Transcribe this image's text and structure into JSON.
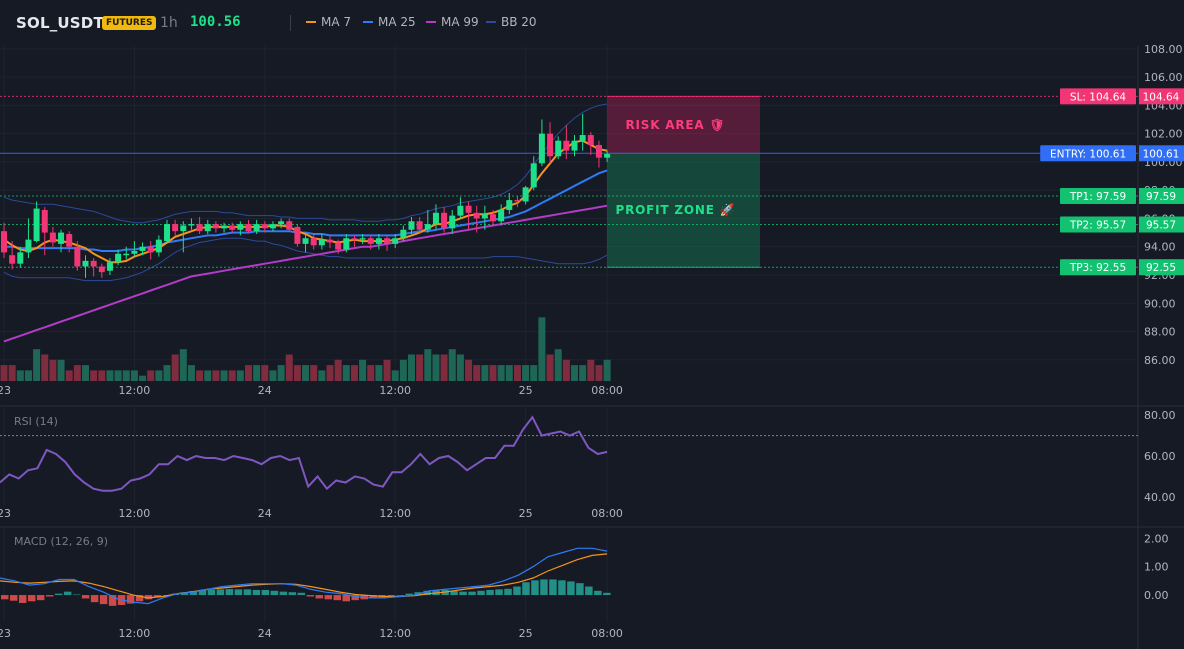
{
  "header": {
    "symbol": "SOL_USDT",
    "badge": "FUTURES",
    "timeframe": "1h",
    "price": "100.56",
    "legend": [
      {
        "label": "MA 7",
        "color": "#f7931a"
      },
      {
        "label": "MA 25",
        "color": "#2f7bf5"
      },
      {
        "label": "MA 99",
        "color": "#b23cc8"
      },
      {
        "label": "BB 20",
        "color": "#2c4a9a"
      }
    ]
  },
  "chart_data": [
    {
      "type": "candlestick",
      "title": "",
      "ylim": [
        84.5,
        108.2
      ],
      "y_ticks": [
        "108.00",
        "106.00",
        "104.00",
        "102.00",
        "100.00",
        "98.00",
        "96.00",
        "94.00",
        "92.00",
        "90.00",
        "88.00",
        "86.00"
      ],
      "x_tick_labels": [
        "23",
        "12:00",
        "24",
        "12:00",
        "25",
        "08:00"
      ],
      "x_tick_bars": [
        0,
        16,
        32,
        48,
        64,
        74
      ],
      "candles": [
        [
          95.1,
          93.6,
          95.7,
          93.2
        ],
        [
          93.4,
          92.8,
          94.4,
          92.4
        ],
        [
          92.8,
          93.6,
          94.0,
          92.5
        ],
        [
          93.6,
          94.5,
          96.0,
          93.2
        ],
        [
          94.4,
          96.7,
          97.2,
          94.3
        ],
        [
          96.6,
          95.0,
          96.8,
          93.4
        ],
        [
          95.0,
          94.3,
          95.4,
          94.0
        ],
        [
          94.2,
          95.0,
          95.2,
          93.6
        ],
        [
          94.9,
          94.0,
          95.1,
          93.6
        ],
        [
          94.0,
          92.6,
          94.4,
          92.3
        ],
        [
          92.6,
          93.0,
          93.4,
          91.8
        ],
        [
          93.0,
          92.6,
          93.2,
          91.9
        ],
        [
          92.6,
          92.2,
          92.8,
          91.8
        ],
        [
          92.3,
          92.9,
          93.2,
          92.0
        ],
        [
          92.9,
          93.5,
          93.8,
          92.7
        ],
        [
          93.4,
          93.5,
          94.0,
          93.1
        ],
        [
          93.5,
          93.7,
          94.4,
          93.3
        ],
        [
          93.7,
          94.0,
          94.3,
          93.4
        ],
        [
          94.0,
          93.6,
          94.4,
          93.1
        ],
        [
          93.6,
          94.5,
          94.8,
          93.3
        ],
        [
          94.4,
          95.6,
          95.9,
          94.3
        ],
        [
          95.6,
          95.1,
          95.9,
          94.8
        ],
        [
          95.1,
          95.5,
          95.8,
          93.6
        ],
        [
          95.5,
          95.6,
          96.0,
          95.2
        ],
        [
          95.6,
          95.1,
          96.1,
          94.9
        ],
        [
          95.1,
          95.6,
          95.9,
          94.9
        ],
        [
          95.6,
          95.3,
          95.8,
          95.0
        ],
        [
          95.3,
          95.5,
          95.7,
          95.0
        ],
        [
          95.5,
          95.2,
          95.7,
          95.0
        ],
        [
          95.2,
          95.6,
          95.8,
          94.8
        ],
        [
          95.6,
          95.1,
          95.9,
          95.0
        ],
        [
          95.1,
          95.6,
          95.9,
          94.9
        ],
        [
          95.6,
          95.3,
          95.8,
          95.0
        ],
        [
          95.3,
          95.6,
          95.8,
          95.1
        ],
        [
          95.6,
          95.8,
          96.0,
          95.3
        ],
        [
          95.8,
          95.2,
          96.0,
          95.1
        ],
        [
          95.4,
          94.2,
          95.6,
          94.0
        ],
        [
          94.2,
          94.6,
          94.9,
          93.6
        ],
        [
          94.6,
          94.1,
          94.9,
          93.8
        ],
        [
          94.1,
          94.5,
          94.9,
          93.8
        ],
        [
          94.5,
          94.3,
          94.8,
          93.9
        ],
        [
          94.3,
          93.8,
          94.5,
          93.5
        ],
        [
          93.8,
          94.6,
          94.9,
          93.6
        ],
        [
          94.6,
          94.5,
          94.8,
          94.0
        ],
        [
          94.5,
          94.6,
          94.9,
          94.2
        ],
        [
          94.6,
          94.2,
          94.8,
          93.8
        ],
        [
          94.2,
          94.6,
          94.9,
          93.8
        ],
        [
          94.6,
          94.2,
          94.8,
          93.7
        ],
        [
          94.2,
          94.6,
          94.9,
          93.9
        ],
        [
          94.6,
          95.2,
          95.5,
          94.4
        ],
        [
          95.2,
          95.8,
          96.1,
          94.9
        ],
        [
          95.8,
          95.2,
          96.1,
          94.9
        ],
        [
          95.2,
          95.6,
          96.6,
          95.0
        ],
        [
          95.6,
          96.4,
          97.0,
          95.2
        ],
        [
          96.4,
          95.3,
          96.8,
          95.0
        ],
        [
          95.3,
          96.2,
          96.6,
          94.9
        ],
        [
          96.2,
          96.9,
          97.5,
          96.0
        ],
        [
          96.9,
          96.4,
          97.2,
          95.2
        ],
        [
          96.4,
          96.0,
          96.9,
          95.0
        ],
        [
          96.0,
          96.3,
          96.9,
          95.2
        ],
        [
          96.3,
          95.8,
          96.6,
          95.5
        ],
        [
          95.8,
          96.6,
          97.0,
          95.5
        ],
        [
          96.6,
          97.3,
          97.8,
          96.3
        ],
        [
          97.3,
          97.2,
          97.6,
          96.8
        ],
        [
          97.2,
          98.2,
          98.3,
          97.0
        ],
        [
          98.2,
          99.9,
          100.4,
          98.0
        ],
        [
          99.9,
          102.0,
          103.0,
          99.7
        ],
        [
          102.0,
          100.4,
          102.8,
          99.9
        ],
        [
          100.4,
          101.5,
          101.8,
          100.2
        ],
        [
          101.5,
          100.8,
          102.6,
          100.2
        ],
        [
          100.8,
          101.5,
          101.9,
          100.4
        ],
        [
          101.5,
          101.9,
          103.4,
          100.8
        ],
        [
          101.9,
          101.2,
          102.1,
          100.5
        ],
        [
          101.2,
          100.3,
          101.5,
          99.6
        ],
        [
          100.3,
          100.56,
          100.8,
          100.0
        ]
      ],
      "ma7": [
        94.5,
        94.1,
        93.8,
        93.7,
        93.9,
        94.3,
        94.5,
        94.4,
        94.3,
        94.1,
        93.9,
        93.5,
        93.2,
        92.9,
        92.9,
        93.0,
        93.3,
        93.5,
        93.7,
        93.9,
        94.3,
        94.7,
        94.9,
        95.1,
        95.3,
        95.4,
        95.4,
        95.4,
        95.4,
        95.4,
        95.4,
        95.4,
        95.4,
        95.5,
        95.5,
        95.4,
        95.1,
        94.9,
        94.6,
        94.5,
        94.4,
        94.3,
        94.4,
        94.5,
        94.4,
        94.4,
        94.4,
        94.4,
        94.5,
        94.6,
        94.8,
        95.0,
        95.3,
        95.6,
        95.6,
        95.8,
        96.0,
        96.2,
        96.3,
        96.3,
        96.4,
        96.6,
        96.9,
        97.1,
        97.6,
        98.4,
        99.2,
        99.9,
        100.6,
        101.0,
        101.4,
        101.5,
        101.2,
        100.9,
        100.8
      ],
      "ma25": [
        94.0,
        94.0,
        93.9,
        93.9,
        93.9,
        93.9,
        93.9,
        93.9,
        93.9,
        93.9,
        93.8,
        93.8,
        93.7,
        93.7,
        93.7,
        93.8,
        93.8,
        93.9,
        94.0,
        94.1,
        94.3,
        94.4,
        94.5,
        94.6,
        94.7,
        94.8,
        94.8,
        94.9,
        95.0,
        95.0,
        95.0,
        95.1,
        95.1,
        95.1,
        95.1,
        95.1,
        95.0,
        95.0,
        94.9,
        94.9,
        94.8,
        94.8,
        94.8,
        94.8,
        94.8,
        94.8,
        94.8,
        94.8,
        94.8,
        94.9,
        95.0,
        95.1,
        95.1,
        95.2,
        95.3,
        95.4,
        95.5,
        95.6,
        95.7,
        95.8,
        95.9,
        96.0,
        96.1,
        96.3,
        96.5,
        96.8,
        97.1,
        97.4,
        97.7,
        98.0,
        98.3,
        98.6,
        98.9,
        99.2,
        99.4
      ],
      "ma99": [
        87.3,
        87.5,
        87.7,
        87.9,
        88.1,
        88.3,
        88.5,
        88.7,
        88.9,
        89.1,
        89.3,
        89.5,
        89.7,
        89.9,
        90.1,
        90.3,
        90.5,
        90.7,
        90.9,
        91.1,
        91.3,
        91.5,
        91.7,
        91.9,
        92.0,
        92.1,
        92.2,
        92.3,
        92.4,
        92.5,
        92.6,
        92.7,
        92.8,
        92.9,
        93.0,
        93.1,
        93.2,
        93.3,
        93.4,
        93.5,
        93.6,
        93.7,
        93.8,
        93.9,
        94.0,
        94.0,
        94.1,
        94.2,
        94.3,
        94.4,
        94.5,
        94.6,
        94.7,
        94.8,
        94.9,
        95.0,
        95.1,
        95.2,
        95.3,
        95.4,
        95.5,
        95.6,
        95.7,
        95.8,
        95.9,
        96.0,
        96.1,
        96.2,
        96.3,
        96.4,
        96.5,
        96.6,
        96.7,
        96.8,
        96.9
      ],
      "bb_upper": [
        97.5,
        97.3,
        97.2,
        97.1,
        97.0,
        97.0,
        97.0,
        96.9,
        96.8,
        96.7,
        96.6,
        96.5,
        96.3,
        96.1,
        95.9,
        95.8,
        95.7,
        95.7,
        95.8,
        95.9,
        96.1,
        96.3,
        96.4,
        96.5,
        96.5,
        96.5,
        96.5,
        96.4,
        96.4,
        96.3,
        96.2,
        96.2,
        96.2,
        96.2,
        96.1,
        96.1,
        96.0,
        96.0,
        96.0,
        96.0,
        95.9,
        95.9,
        95.9,
        95.9,
        95.8,
        95.8,
        95.8,
        95.9,
        95.9,
        96.0,
        96.2,
        96.3,
        96.5,
        96.7,
        96.8,
        96.9,
        97.1,
        97.2,
        97.3,
        97.4,
        97.5,
        97.7,
        98.0,
        98.4,
        99.0,
        99.8,
        100.6,
        101.3,
        102.0,
        102.6,
        103.1,
        103.5,
        103.8,
        104.0,
        104.1
      ],
      "bb_lower": [
        92.2,
        91.9,
        91.8,
        91.8,
        91.8,
        91.8,
        91.8,
        91.8,
        91.8,
        91.7,
        91.6,
        91.6,
        91.6,
        91.6,
        91.7,
        91.8,
        92.0,
        92.2,
        92.5,
        92.8,
        93.2,
        93.6,
        93.9,
        94.1,
        94.3,
        94.4,
        94.5,
        94.6,
        94.6,
        94.6,
        94.5,
        94.4,
        94.4,
        94.2,
        94.1,
        93.9,
        93.7,
        93.6,
        93.5,
        93.4,
        93.3,
        93.3,
        93.2,
        93.2,
        93.2,
        93.2,
        93.2,
        93.2,
        93.2,
        93.2,
        93.2,
        93.2,
        93.2,
        93.2,
        93.2,
        93.2,
        93.2,
        93.2,
        93.2,
        93.2,
        93.3,
        93.3,
        93.3,
        93.3,
        93.2,
        93.1,
        93.0,
        92.9,
        92.8,
        92.8,
        92.8,
        92.8,
        92.9,
        93.1,
        93.4
      ],
      "volume": [
        3,
        3,
        2,
        2,
        6,
        5,
        4,
        4,
        2,
        3,
        3,
        2,
        2,
        2,
        2,
        2,
        2,
        1,
        2,
        2,
        3,
        5,
        6,
        3,
        2,
        2,
        2,
        2,
        2,
        2,
        3,
        3,
        3,
        2,
        3,
        5,
        3,
        3,
        3,
        2,
        3,
        4,
        3,
        3,
        4,
        3,
        3,
        4,
        2,
        4,
        5,
        5,
        6,
        5,
        5,
        6,
        5,
        4,
        3,
        3,
        3,
        3,
        3,
        3,
        3,
        3,
        12,
        5,
        6,
        4,
        3,
        3,
        4,
        3,
        4
      ],
      "levels": [
        {
          "label": "SL: 104.64",
          "value": "104.64",
          "price": 104.64,
          "color": "#f23675"
        },
        {
          "label": "ENTRY: 100.61",
          "value": "100.61",
          "price": 100.61,
          "color": "#2f6ef5"
        },
        {
          "label": "TP1: 97.59",
          "value": "97.59",
          "price": 97.59,
          "color": "#12c270"
        },
        {
          "label": "TP2: 95.57",
          "value": "95.57",
          "price": 95.57,
          "color": "#12c270"
        },
        {
          "label": "TP3: 92.55",
          "value": "92.55",
          "price": 92.55,
          "color": "#12c270"
        }
      ],
      "zones": [
        {
          "label": "RISK AREA 🛡",
          "from": 104.64,
          "to": 100.61,
          "color": "#e0256b"
        },
        {
          "label": "PROFIT ZONE 🚀",
          "from": 100.61,
          "to": 92.55,
          "color": "#15a86b"
        }
      ]
    },
    {
      "type": "line",
      "title": "RSI (14)",
      "ylim": [
        36,
        84
      ],
      "y_ticks": [
        "80.00",
        "60.00",
        "40.00"
      ],
      "overbought": 70,
      "x_tick_labels": [
        "23",
        "12:00",
        "24",
        "12:00",
        "25",
        "08:00"
      ],
      "values": [
        47,
        51,
        49,
        53,
        54,
        63,
        61,
        57,
        51,
        47,
        44,
        43,
        43,
        44,
        48,
        49,
        51,
        56,
        56,
        60,
        58,
        60,
        59,
        59,
        58,
        60,
        59,
        58,
        56,
        59,
        60,
        58,
        59,
        45,
        50,
        44,
        48,
        47,
        50,
        49,
        46,
        45,
        52,
        52,
        56,
        61,
        56,
        59,
        60,
        57,
        53,
        56,
        59,
        59,
        65,
        65,
        73,
        79,
        70,
        71,
        72,
        70,
        72,
        64,
        61,
        62
      ],
      "series_color": "#7e57c2"
    },
    {
      "type": "bar",
      "title": "MACD (12, 26, 9)",
      "ylim": [
        -0.95,
        2.4
      ],
      "y_ticks": [
        "2.00",
        "1.00",
        "0.00"
      ],
      "x_tick_labels": [
        "23",
        "12:00",
        "24",
        "12:00",
        "25",
        "08:00"
      ],
      "histogram": [
        -0.15,
        -0.2,
        -0.28,
        -0.22,
        -0.18,
        -0.05,
        0.05,
        0.12,
        0.02,
        -0.12,
        -0.25,
        -0.32,
        -0.38,
        -0.35,
        -0.3,
        -0.22,
        -0.15,
        -0.08,
        -0.02,
        0.05,
        0.1,
        0.14,
        0.18,
        0.18,
        0.2,
        0.21,
        0.2,
        0.2,
        0.18,
        0.18,
        0.15,
        0.12,
        0.1,
        0.08,
        -0.05,
        -0.12,
        -0.15,
        -0.18,
        -0.22,
        -0.18,
        -0.15,
        -0.12,
        -0.1,
        -0.05,
        -0.02,
        0.05,
        0.1,
        0.15,
        0.18,
        0.18,
        0.15,
        0.12,
        0.12,
        0.15,
        0.18,
        0.2,
        0.22,
        0.3,
        0.45,
        0.52,
        0.55,
        0.55,
        0.52,
        0.48,
        0.42,
        0.3,
        0.15,
        0.08
      ],
      "macd": [
        0.6,
        0.5,
        0.35,
        0.4,
        0.55,
        0.55,
        0.3,
        0.1,
        -0.15,
        -0.25,
        -0.3,
        -0.1,
        0.05,
        0.1,
        0.2,
        0.3,
        0.35,
        0.4,
        0.4,
        0.4,
        0.35,
        0.2,
        0.1,
        0.05,
        -0.05,
        -0.1,
        -0.1,
        -0.05,
        0.0,
        0.15,
        0.2,
        0.25,
        0.3,
        0.35,
        0.5,
        0.7,
        1.0,
        1.35,
        1.5,
        1.65,
        1.65,
        1.55
      ],
      "signal": [
        0.5,
        0.45,
        0.42,
        0.45,
        0.48,
        0.5,
        0.42,
        0.3,
        0.15,
        0.0,
        -0.1,
        -0.05,
        0.05,
        0.12,
        0.2,
        0.25,
        0.3,
        0.35,
        0.38,
        0.4,
        0.38,
        0.3,
        0.2,
        0.1,
        0.02,
        -0.02,
        -0.05,
        -0.05,
        -0.02,
        0.05,
        0.1,
        0.18,
        0.25,
        0.3,
        0.35,
        0.45,
        0.6,
        0.85,
        1.05,
        1.25,
        1.4,
        1.45
      ]
    }
  ]
}
